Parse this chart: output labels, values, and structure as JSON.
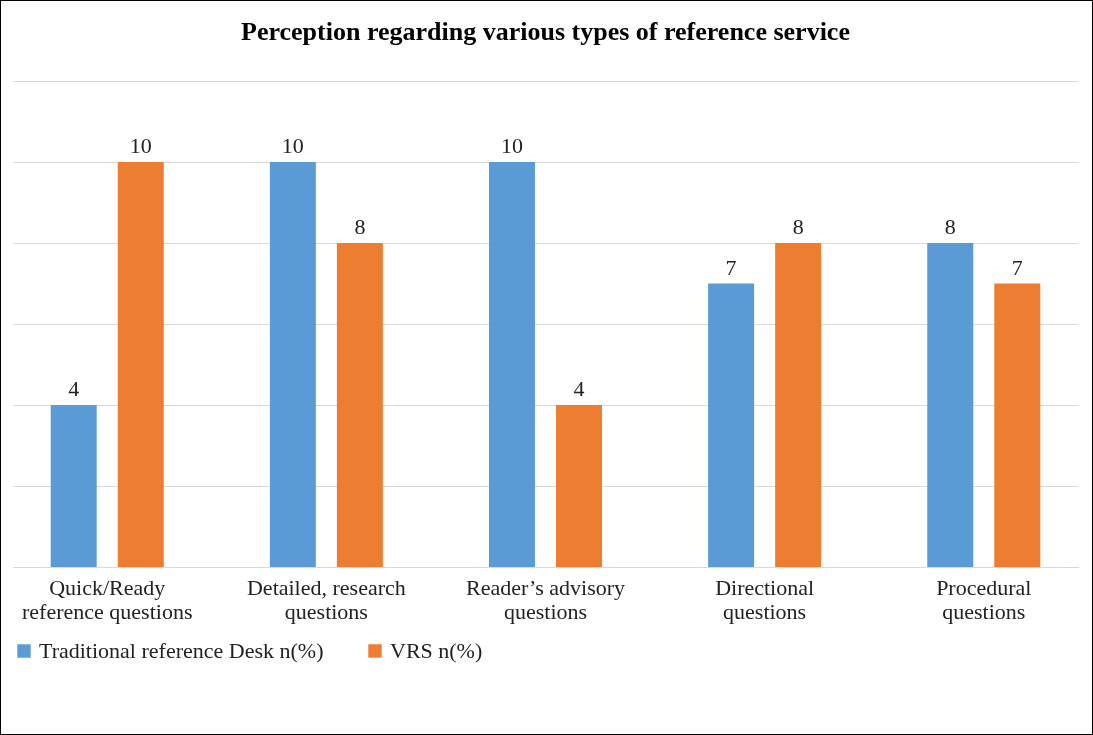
{
  "chart_data": {
    "type": "bar",
    "title": "Perception regarding various types of reference service",
    "categories": [
      "Quick/Ready reference questions",
      "Detailed, research questions",
      "Reader’s advisory questions",
      "Directional questions",
      "Procedural questions"
    ],
    "series": [
      {
        "name": "Traditional reference Desk n(%)",
        "color": "#5b9bd5",
        "values": [
          4,
          10,
          10,
          7,
          8
        ]
      },
      {
        "name": "VRS n(%)",
        "color": "#ed7d31",
        "values": [
          10,
          8,
          4,
          8,
          7
        ]
      }
    ],
    "ylim": [
      0,
      12
    ],
    "yticks": [
      0,
      2,
      4,
      6,
      8,
      10,
      12
    ],
    "grid": "y",
    "tick_labels": "x",
    "data_labels": true,
    "legend": "bottom"
  }
}
